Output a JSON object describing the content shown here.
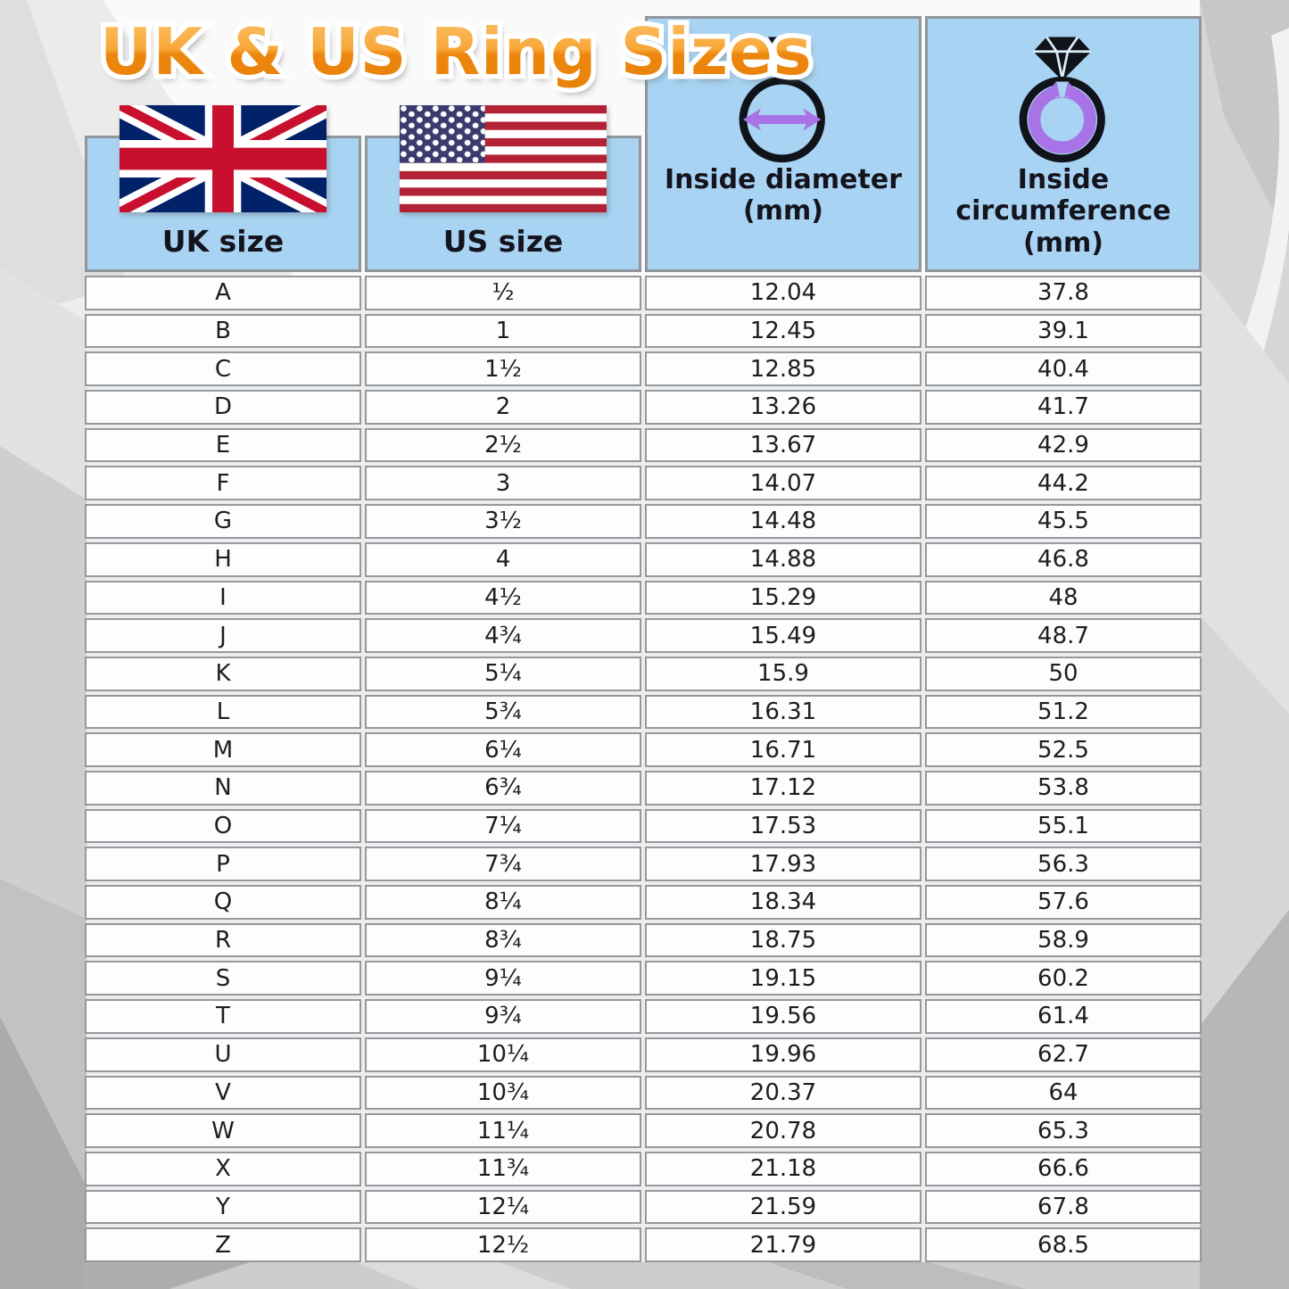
{
  "title": "UK & US Ring Sizes",
  "colors": {
    "header_blue": "#a9d3f2",
    "cell_white": "#fdfdfd",
    "border_gray": "#94999e",
    "title_orange_top": "#fbc268",
    "title_orange_bottom": "#e88207",
    "accent_purple": "#a873e6",
    "uk_flag_blue": "#012169",
    "uk_flag_red": "#C8102E",
    "us_flag_red": "#B22234",
    "us_flag_blue": "#3C3B6E",
    "header_text": "#14141e"
  },
  "header": {
    "uk_label": "UK size",
    "us_label": "US size",
    "diameter_label": "Inside diameter\n(mm)",
    "circumference_label": "Inside\ncircumference\n(mm)"
  },
  "chart_data": {
    "type": "table",
    "title": "UK & US Ring Sizes",
    "columns": [
      "UK size",
      "US size",
      "Inside diameter (mm)",
      "Inside circumference (mm)"
    ],
    "rows": [
      [
        "A",
        "½",
        "12.04",
        "37.8"
      ],
      [
        "B",
        "1",
        "12.45",
        "39.1"
      ],
      [
        "C",
        "1½",
        "12.85",
        "40.4"
      ],
      [
        "D",
        "2",
        "13.26",
        "41.7"
      ],
      [
        "E",
        "2½",
        "13.67",
        "42.9"
      ],
      [
        "F",
        "3",
        "14.07",
        "44.2"
      ],
      [
        "G",
        "3½",
        "14.48",
        "45.5"
      ],
      [
        "H",
        "4",
        "14.88",
        "46.8"
      ],
      [
        "I",
        "4½",
        "15.29",
        "48"
      ],
      [
        "J",
        "4¾",
        "15.49",
        "48.7"
      ],
      [
        "K",
        "5¼",
        "15.9",
        "50"
      ],
      [
        "L",
        "5¾",
        "16.31",
        "51.2"
      ],
      [
        "M",
        "6¼",
        "16.71",
        "52.5"
      ],
      [
        "N",
        "6¾",
        "17.12",
        "53.8"
      ],
      [
        "O",
        "7¼",
        "17.53",
        "55.1"
      ],
      [
        "P",
        "7¾",
        "17.93",
        "56.3"
      ],
      [
        "Q",
        "8¼",
        "18.34",
        "57.6"
      ],
      [
        "R",
        "8¾",
        "18.75",
        "58.9"
      ],
      [
        "S",
        "9¼",
        "19.15",
        "60.2"
      ],
      [
        "T",
        "9¾",
        "19.56",
        "61.4"
      ],
      [
        "U",
        "10¼",
        "19.96",
        "62.7"
      ],
      [
        "V",
        "10¾",
        "20.37",
        "64"
      ],
      [
        "W",
        "11¼",
        "20.78",
        "65.3"
      ],
      [
        "X",
        "11¾",
        "21.18",
        "66.6"
      ],
      [
        "Y",
        "12¼",
        "21.59",
        "67.8"
      ],
      [
        "Z",
        "12½",
        "21.79",
        "68.5"
      ]
    ]
  }
}
